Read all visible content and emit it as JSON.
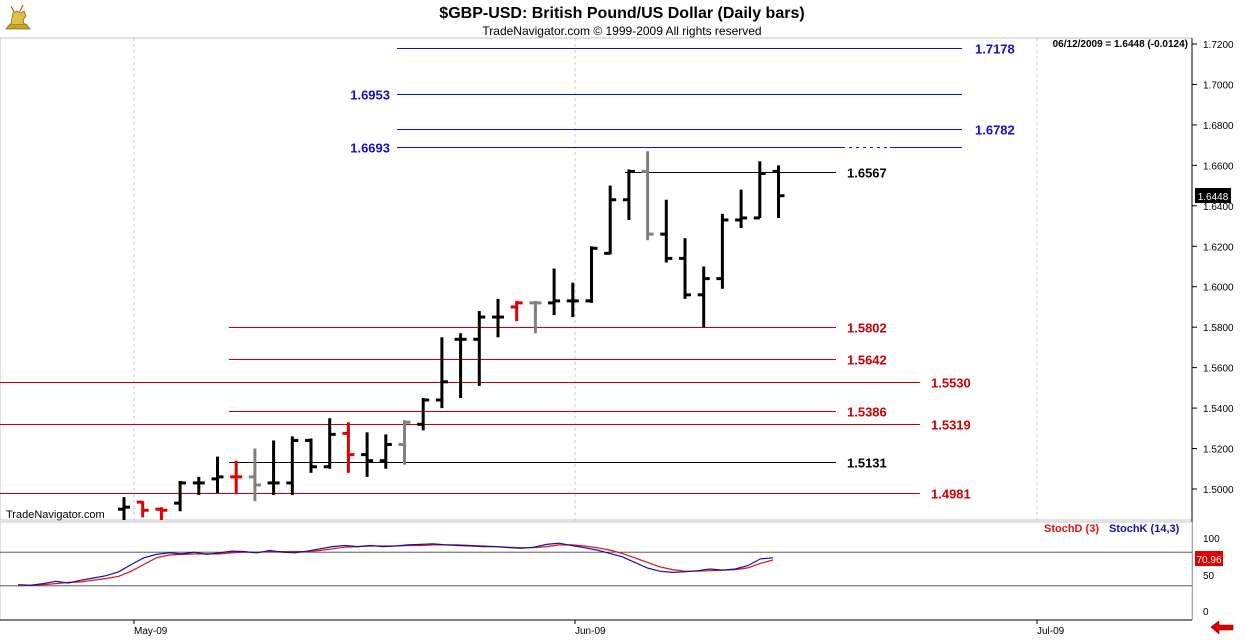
{
  "header": {
    "title": "$GBP-USD:  British Pound/US Dollar  (Daily bars)",
    "copyright": "TradeNavigator.com © 1999-2009 All rights reserved",
    "quote": "06/12/2009 = 1.6448 (-0.0124)",
    "watermark": "TradeNavigator.com"
  },
  "colors": {
    "up": "#000000",
    "down": "#e00000",
    "neutral": "#808080",
    "blue_level": "#1010c8",
    "red_level": "#cc0000",
    "stoch_d": "#dd1111",
    "stoch_k": "#1111aa"
  },
  "chart_data": {
    "type": "ohlc",
    "price_axis": {
      "ticks": [
        "1.7200",
        "1.7000",
        "1.6800",
        "1.6600",
        "1.6400",
        "1.6200",
        "1.6000",
        "1.5800",
        "1.5600",
        "1.5400",
        "1.5200",
        "1.5000"
      ],
      "last_price_label": "1.6448"
    },
    "date_axis": {
      "labels": [
        "May-09",
        "Jun-09",
        "Jul-09"
      ]
    },
    "bars": [
      {
        "o": 1.49,
        "h": 1.496,
        "l": 1.478,
        "c": 1.491,
        "color": "up"
      },
      {
        "o": 1.4935,
        "h": 1.494,
        "l": 1.486,
        "c": 1.4895,
        "color": "down"
      },
      {
        "o": 1.49,
        "h": 1.491,
        "l": 1.482,
        "c": 1.4895,
        "color": "down"
      },
      {
        "o": 1.493,
        "h": 1.504,
        "l": 1.489,
        "c": 1.503,
        "color": "up"
      },
      {
        "o": 1.503,
        "h": 1.506,
        "l": 1.497,
        "c": 1.503,
        "color": "up"
      },
      {
        "o": 1.505,
        "h": 1.516,
        "l": 1.498,
        "c": 1.506,
        "color": "up"
      },
      {
        "o": 1.506,
        "h": 1.514,
        "l": 1.498,
        "c": 1.506,
        "color": "down"
      },
      {
        "o": 1.506,
        "h": 1.52,
        "l": 1.494,
        "c": 1.502,
        "color": "neutral"
      },
      {
        "o": 1.503,
        "h": 1.524,
        "l": 1.497,
        "c": 1.503,
        "color": "up"
      },
      {
        "o": 1.503,
        "h": 1.526,
        "l": 1.497,
        "c": 1.524,
        "color": "up"
      },
      {
        "o": 1.524,
        "h": 1.525,
        "l": 1.508,
        "c": 1.511,
        "color": "up"
      },
      {
        "o": 1.511,
        "h": 1.535,
        "l": 1.51,
        "c": 1.527,
        "color": "up"
      },
      {
        "o": 1.5275,
        "h": 1.533,
        "l": 1.508,
        "c": 1.517,
        "color": "down"
      },
      {
        "o": 1.517,
        "h": 1.528,
        "l": 1.506,
        "c": 1.514,
        "color": "up"
      },
      {
        "o": 1.514,
        "h": 1.527,
        "l": 1.51,
        "c": 1.522,
        "color": "up"
      },
      {
        "o": 1.522,
        "h": 1.534,
        "l": 1.512,
        "c": 1.533,
        "color": "neutral"
      },
      {
        "o": 1.532,
        "h": 1.545,
        "l": 1.529,
        "c": 1.544,
        "color": "up"
      },
      {
        "o": 1.544,
        "h": 1.575,
        "l": 1.54,
        "c": 1.553,
        "color": "up"
      },
      {
        "o": 1.574,
        "h": 1.577,
        "l": 1.545,
        "c": 1.574,
        "color": "up"
      },
      {
        "o": 1.574,
        "h": 1.588,
        "l": 1.551,
        "c": 1.585,
        "color": "up"
      },
      {
        "o": 1.585,
        "h": 1.594,
        "l": 1.575,
        "c": 1.585,
        "color": "up"
      },
      {
        "o": 1.59,
        "h": 1.593,
        "l": 1.583,
        "c": 1.592,
        "color": "down"
      },
      {
        "o": 1.592,
        "h": 1.593,
        "l": 1.577,
        "c": 1.592,
        "color": "neutral"
      },
      {
        "o": 1.592,
        "h": 1.609,
        "l": 1.586,
        "c": 1.593,
        "color": "up"
      },
      {
        "o": 1.593,
        "h": 1.602,
        "l": 1.585,
        "c": 1.593,
        "color": "up"
      },
      {
        "o": 1.593,
        "h": 1.62,
        "l": 1.592,
        "c": 1.619,
        "color": "up"
      },
      {
        "o": 1.6165,
        "h": 1.65,
        "l": 1.616,
        "c": 1.643,
        "color": "up"
      },
      {
        "o": 1.643,
        "h": 1.658,
        "l": 1.633,
        "c": 1.657,
        "color": "up"
      },
      {
        "o": 1.657,
        "h": 1.667,
        "l": 1.623,
        "c": 1.626,
        "color": "neutral"
      },
      {
        "o": 1.626,
        "h": 1.643,
        "l": 1.612,
        "c": 1.614,
        "color": "up"
      },
      {
        "o": 1.614,
        "h": 1.624,
        "l": 1.594,
        "c": 1.596,
        "color": "up"
      },
      {
        "o": 1.596,
        "h": 1.61,
        "l": 1.58,
        "c": 1.604,
        "color": "up"
      },
      {
        "o": 1.604,
        "h": 1.636,
        "l": 1.599,
        "c": 1.633,
        "color": "up"
      },
      {
        "o": 1.633,
        "h": 1.648,
        "l": 1.629,
        "c": 1.634,
        "color": "up"
      },
      {
        "o": 1.634,
        "h": 1.662,
        "l": 1.634,
        "c": 1.656,
        "color": "up"
      },
      {
        "o": 1.657,
        "h": 1.66,
        "l": 1.634,
        "c": 1.645,
        "color": "up"
      }
    ],
    "levels": [
      {
        "value": 1.7178,
        "label": "1.7178",
        "label_side": "right",
        "color": "blue_level",
        "span": "wide"
      },
      {
        "value": 1.6953,
        "label": "1.6953",
        "label_side": "left",
        "color": "blue_level",
        "span": "wide"
      },
      {
        "value": 1.6782,
        "label": "1.6782",
        "label_side": "right",
        "color": "blue_level",
        "span": "wide"
      },
      {
        "value": 1.6693,
        "label": "1.6693",
        "label_side": "left",
        "color": "blue_level",
        "span": "wide"
      },
      {
        "value": 1.6567,
        "label": "1.6567",
        "label_side": "right",
        "color": "up",
        "span": "short"
      },
      {
        "value": 1.5802,
        "label": "1.5802",
        "label_side": "right",
        "color": "red_level",
        "span": "mid"
      },
      {
        "value": 1.5642,
        "label": "1.5642",
        "label_side": "right",
        "color": "red_level",
        "span": "mid"
      },
      {
        "value": 1.553,
        "label": "1.5530",
        "label_side": "right",
        "color": "red_level",
        "span": "full"
      },
      {
        "value": 1.5386,
        "label": "1.5386",
        "label_side": "right",
        "color": "red_level",
        "span": "mid"
      },
      {
        "value": 1.5319,
        "label": "1.5319",
        "label_side": "right",
        "color": "red_level",
        "span": "full"
      },
      {
        "value": 1.5131,
        "label": "1.5131",
        "label_side": "right",
        "color": "up",
        "span": "mid"
      },
      {
        "value": 1.4981,
        "label": "1.4981",
        "label_side": "right",
        "color": "red_level",
        "span": "full"
      }
    ],
    "stochastic": {
      "legend_d": "StochD (3)",
      "legend_k": "StochK (14,3)",
      "axis_ticks": [
        "100",
        "50",
        "0"
      ],
      "last_label": "70.96",
      "reference_levels": [
        80,
        20
      ],
      "k": [
        22,
        21,
        24,
        28,
        25,
        30,
        34,
        38,
        45,
        58,
        70,
        76,
        79,
        77,
        80,
        76,
        79,
        82,
        81,
        79,
        83,
        80,
        79,
        82,
        86,
        90,
        92,
        90,
        92,
        90,
        91,
        93,
        94,
        95,
        93,
        92,
        91,
        90,
        90,
        88,
        87,
        89,
        94,
        96,
        92,
        88,
        84,
        78,
        72,
        62,
        52,
        46,
        44,
        45,
        47,
        50,
        48,
        50,
        56,
        68,
        70
      ],
      "d": [
        20,
        21,
        22,
        24,
        26,
        27,
        30,
        33,
        37,
        46,
        58,
        70,
        75,
        76,
        77,
        77,
        77,
        79,
        80,
        80,
        81,
        81,
        81,
        81,
        83,
        86,
        89,
        90,
        91,
        91,
        91,
        92,
        92,
        93,
        93,
        93,
        92,
        91,
        90,
        89,
        88,
        88,
        90,
        93,
        93,
        91,
        88,
        84,
        78,
        70,
        62,
        54,
        49,
        46,
        46,
        47,
        48,
        49,
        52,
        60,
        66
      ]
    }
  }
}
